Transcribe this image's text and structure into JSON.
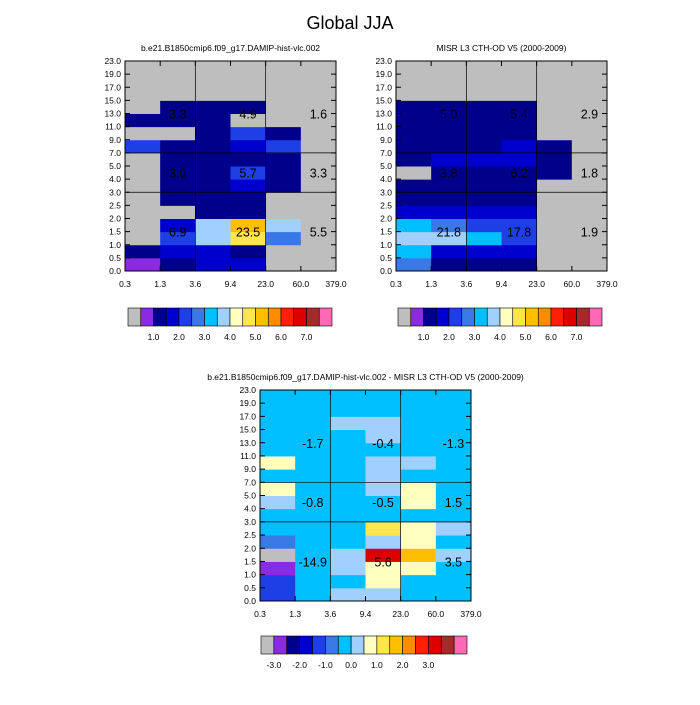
{
  "page_title": "Global JJA",
  "chart_data": [
    {
      "type": "heatmap",
      "title": "b.e21.B1850cmip6.f09_g17.DAMIP-hist-vlc.002",
      "x_tick_labels": [
        "0.3",
        "1.3",
        "3.6",
        "9.4",
        "23.0",
        "60.0",
        "379.0"
      ],
      "y_tick_labels": [
        "0.0",
        "0.5",
        "1.0",
        "1.5",
        "2.0",
        "2.5",
        "3.0",
        "4.0",
        "5.0",
        "7.0",
        "9.0",
        "11.0",
        "13.0",
        "15.0",
        "17.0",
        "19.0",
        "23.0"
      ],
      "xlabel": "",
      "ylabel": "",
      "values": [
        [
          0.5,
          1.0,
          1.5,
          1.5,
          0.0,
          0.0
        ],
        [
          1.0,
          1.5,
          1.5,
          1.0,
          0.0,
          0.0
        ],
        [
          0.0,
          2.0,
          3.5,
          4.5,
          2.5,
          0.0
        ],
        [
          0.0,
          1.5,
          3.5,
          5.0,
          3.5,
          0.0
        ],
        [
          0.0,
          0.0,
          1.0,
          1.0,
          0.0,
          0.0
        ],
        [
          0.0,
          1.0,
          1.0,
          1.0,
          0.0,
          0.0
        ],
        [
          0.0,
          1.0,
          1.0,
          1.5,
          1.0,
          0.0
        ],
        [
          0.0,
          1.0,
          1.0,
          2.0,
          1.0,
          0.0
        ],
        [
          0.0,
          1.0,
          1.0,
          1.0,
          1.0,
          0.0
        ],
        [
          2.0,
          1.0,
          1.0,
          1.5,
          2.0,
          0.0
        ],
        [
          0.0,
          0.0,
          1.0,
          2.0,
          1.0,
          0.0
        ],
        [
          1.0,
          1.0,
          1.0,
          0.0,
          0.0,
          0.0
        ],
        [
          0.0,
          1.0,
          1.0,
          1.0,
          0.0,
          0.0
        ],
        [
          0.0,
          0.0,
          0.0,
          0.0,
          0.0,
          0.0
        ],
        [
          0.0,
          0.0,
          0.0,
          0.0,
          0.0,
          0.0
        ],
        [
          0.0,
          0.0,
          0.0,
          0.0,
          0.0,
          0.0
        ]
      ],
      "cell_labels": [
        {
          "label": "6.9",
          "col": 1,
          "row": 3
        },
        {
          "label": "23.5",
          "col": 3,
          "row": 3
        },
        {
          "label": "5.5",
          "col": 5,
          "row": 3
        },
        {
          "label": "3.0",
          "col": 1,
          "row": 7.5
        },
        {
          "label": "5.7",
          "col": 3,
          "row": 7.5
        },
        {
          "label": "3.3",
          "col": 5,
          "row": 7.5
        },
        {
          "label": "3.3",
          "col": 1,
          "row": 12
        },
        {
          "label": "4.9",
          "col": 3,
          "row": 12
        },
        {
          "label": "1.6",
          "col": 5,
          "row": 12
        }
      ]
    },
    {
      "type": "heatmap",
      "title": "MISR L3 CTH-OD V5 (2000-2009)",
      "x_tick_labels": [
        "0.3",
        "1.3",
        "3.6",
        "9.4",
        "23.0",
        "60.0",
        "379.0"
      ],
      "y_tick_labels": [
        "0.0",
        "0.5",
        "1.0",
        "1.5",
        "2.0",
        "2.5",
        "3.0",
        "4.0",
        "5.0",
        "7.0",
        "9.0",
        "11.0",
        "13.0",
        "15.0",
        "17.0",
        "19.0",
        "23.0"
      ],
      "xlabel": "",
      "ylabel": "",
      "values": [
        [
          2.5,
          1.0,
          1.0,
          1.0,
          0.0,
          0.0
        ],
        [
          3.0,
          1.5,
          1.5,
          1.5,
          0.0,
          0.0
        ],
        [
          3.5,
          3.5,
          3.0,
          2.0,
          0.0,
          0.0
        ],
        [
          3.0,
          2.5,
          2.0,
          2.0,
          0.0,
          0.0
        ],
        [
          1.5,
          1.5,
          1.5,
          1.5,
          0.0,
          0.0
        ],
        [
          1.0,
          1.0,
          1.0,
          1.0,
          0.0,
          0.0
        ],
        [
          1.0,
          1.0,
          1.0,
          1.0,
          0.0,
          0.0
        ],
        [
          0.0,
          1.0,
          1.0,
          1.0,
          1.0,
          0.0
        ],
        [
          1.0,
          1.5,
          1.5,
          1.5,
          1.0,
          0.0
        ],
        [
          1.0,
          1.0,
          1.0,
          1.5,
          1.0,
          0.0
        ],
        [
          1.0,
          1.0,
          1.0,
          1.0,
          0.0,
          0.0
        ],
        [
          1.0,
          1.0,
          1.0,
          1.0,
          0.0,
          0.0
        ],
        [
          1.0,
          1.0,
          1.0,
          1.0,
          0.0,
          0.0
        ],
        [
          0.0,
          0.0,
          0.0,
          0.0,
          0.0,
          0.0
        ],
        [
          0.0,
          0.0,
          0.0,
          0.0,
          0.0,
          0.0
        ],
        [
          0.0,
          0.0,
          0.0,
          0.0,
          0.0,
          0.0
        ]
      ],
      "cell_labels": [
        {
          "label": "21.8",
          "col": 1,
          "row": 3
        },
        {
          "label": "17.8",
          "col": 3,
          "row": 3
        },
        {
          "label": "1.9",
          "col": 5,
          "row": 3
        },
        {
          "label": "3.8",
          "col": 1,
          "row": 7.5
        },
        {
          "label": "6.2",
          "col": 3,
          "row": 7.5
        },
        {
          "label": "1.8",
          "col": 5,
          "row": 7.5
        },
        {
          "label": "5.0",
          "col": 1,
          "row": 12
        },
        {
          "label": "5.4",
          "col": 3,
          "row": 12
        },
        {
          "label": "2.9",
          "col": 5,
          "row": 12
        }
      ]
    },
    {
      "type": "heatmap",
      "title": "b.e21.B1850cmip6.f09_g17.DAMIP-hist-vlc.002 - MISR L3 CTH-OD V5 (2000-2009)",
      "x_tick_labels": [
        "0.3",
        "1.3",
        "3.6",
        "9.4",
        "23.0",
        "60.0",
        "379.0"
      ],
      "y_tick_labels": [
        "0.0",
        "0.5",
        "1.0",
        "1.5",
        "2.0",
        "2.5",
        "3.0",
        "4.0",
        "5.0",
        "7.0",
        "9.0",
        "11.0",
        "13.0",
        "15.0",
        "17.0",
        "19.0",
        "23.0"
      ],
      "xlabel": "",
      "ylabel": "",
      "values": [
        [
          -1.5,
          -0.2,
          0.1,
          0.1,
          -0.2,
          -0.2
        ],
        [
          -1.5,
          -0.2,
          -0.2,
          0.5,
          -0.2,
          -0.2
        ],
        [
          -3.0,
          -0.2,
          0.1,
          0.5,
          0.5,
          -0.2
        ],
        [
          -3.5,
          -0.5,
          0.1,
          3.0,
          1.5,
          0.1
        ],
        [
          -1.0,
          -0.5,
          -0.5,
          0.1,
          0.5,
          -0.2
        ],
        [
          -0.5,
          -0.2,
          -0.2,
          1.0,
          0.5,
          0.1
        ],
        [
          -0.2,
          -0.2,
          -0.2,
          -0.2,
          -0.2,
          -0.2
        ],
        [
          0.1,
          -0.2,
          -0.2,
          -0.2,
          0.5,
          -0.2
        ],
        [
          0.5,
          -0.2,
          -0.5,
          0.1,
          0.5,
          -0.2
        ],
        [
          -0.2,
          -0.2,
          -0.2,
          0.1,
          -0.2,
          -0.2
        ],
        [
          0.5,
          -0.2,
          -0.2,
          0.1,
          0.1,
          -0.2
        ],
        [
          -0.2,
          -0.2,
          -0.2,
          -0.2,
          -0.2,
          -0.2
        ],
        [
          -0.2,
          -0.2,
          -0.2,
          0.1,
          -0.2,
          -0.2
        ],
        [
          -0.2,
          -0.2,
          0.1,
          0.1,
          -0.2,
          -0.2
        ],
        [
          -0.2,
          -0.2,
          -0.2,
          -0.2,
          -0.2,
          -0.2
        ],
        [
          -0.2,
          -0.2,
          -0.2,
          -0.2,
          -0.2,
          -0.2
        ]
      ],
      "cell_labels": [
        {
          "label": "-14.9",
          "col": 1,
          "row": 3
        },
        {
          "label": "5.6",
          "col": 3,
          "row": 3
        },
        {
          "label": "3.5",
          "col": 5,
          "row": 3
        },
        {
          "label": "-0.8",
          "col": 1,
          "row": 7.5
        },
        {
          "label": "-0.5",
          "col": 3,
          "row": 7.5
        },
        {
          "label": "1.5",
          "col": 5,
          "row": 7.5
        },
        {
          "label": "-1.7",
          "col": 1,
          "row": 12
        },
        {
          "label": "-0.4",
          "col": 3,
          "row": 12
        },
        {
          "label": "-1.3",
          "col": 5,
          "row": 12
        }
      ]
    }
  ],
  "colorbars": [
    {
      "boundaries": [
        0.0,
        0.5,
        1.0,
        1.5,
        2.0,
        2.5,
        3.0,
        3.5,
        4.0,
        4.5,
        5.0,
        5.5,
        6.0,
        6.5,
        7.0,
        7.5
      ],
      "labels": [
        "1.0",
        "2.0",
        "3.0",
        "4.0",
        "5.0",
        "6.0",
        "7.0"
      ],
      "colors": [
        "#bebebe",
        "#8a2be2",
        "#00008b",
        "#0000cd",
        "#1e3fe6",
        "#3a78e6",
        "#00bfff",
        "#a0d0ff",
        "#ffffc0",
        "#ffe64d",
        "#ffbf00",
        "#ff8c00",
        "#ff2000",
        "#dc0000",
        "#a52a2a",
        "#ff69b4"
      ]
    },
    {
      "boundaries": [
        0.0,
        0.5,
        1.0,
        1.5,
        2.0,
        2.5,
        3.0,
        3.5,
        4.0,
        4.5,
        5.0,
        5.5,
        6.0,
        6.5,
        7.0,
        7.5
      ],
      "labels": [
        "1.0",
        "2.0",
        "3.0",
        "4.0",
        "5.0",
        "6.0",
        "7.0"
      ],
      "colors": [
        "#bebebe",
        "#8a2be2",
        "#00008b",
        "#0000cd",
        "#1e3fe6",
        "#3a78e6",
        "#00bfff",
        "#a0d0ff",
        "#ffffc0",
        "#ffe64d",
        "#ffbf00",
        "#ff8c00",
        "#ff2000",
        "#dc0000",
        "#a52a2a",
        "#ff69b4"
      ]
    },
    {
      "boundaries": [
        -3.5,
        -3.0,
        -2.5,
        -2.0,
        -1.5,
        -1.0,
        -0.5,
        0.0,
        0.5,
        1.0,
        1.5,
        2.0,
        2.5,
        3.0,
        3.5
      ],
      "labels": [
        "-3.0",
        "-2.0",
        "-1.0",
        "0.0",
        "1.0",
        "2.0",
        "3.0"
      ],
      "colors": [
        "#bebebe",
        "#8a2be2",
        "#00008b",
        "#0000cd",
        "#1e3fe6",
        "#3a78e6",
        "#00bfff",
        "#a0d0ff",
        "#ffffc0",
        "#ffe64d",
        "#ffbf00",
        "#ff8c00",
        "#ff2000",
        "#dc0000",
        "#a52a2a",
        "#ff69b4"
      ]
    }
  ]
}
